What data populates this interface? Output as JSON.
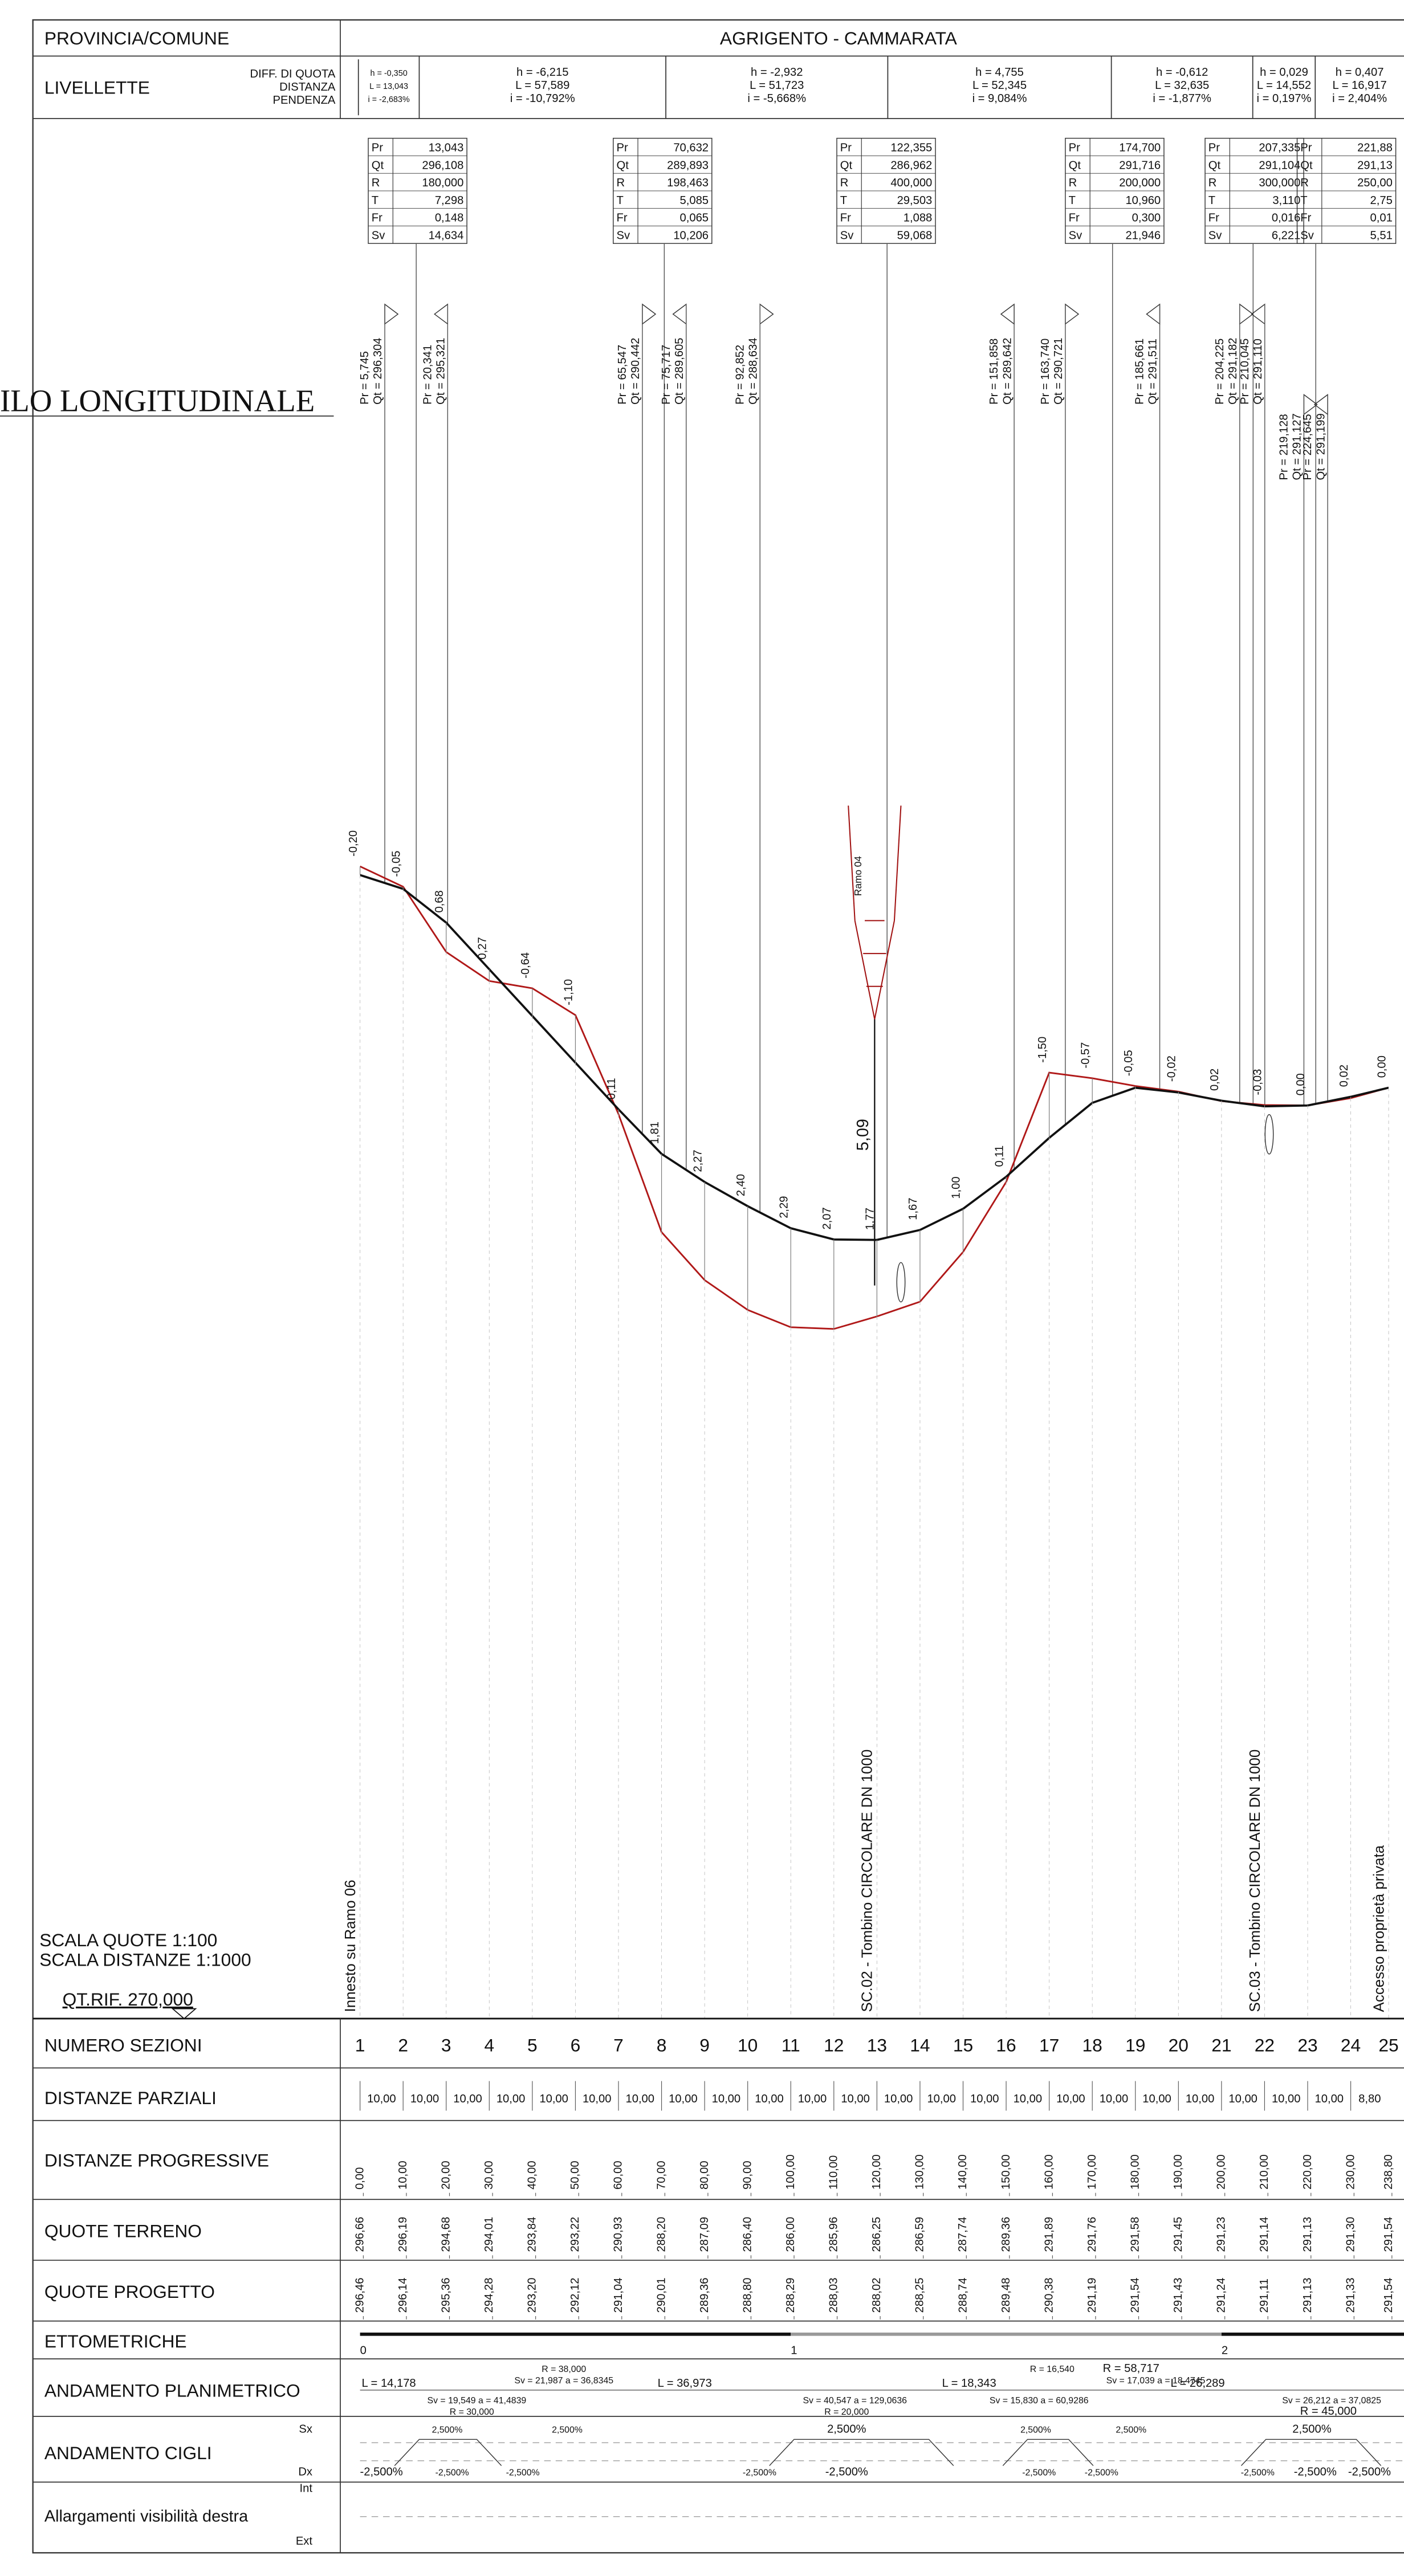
{
  "header": {
    "label": "PROVINCIA/COMUNE",
    "value": "AGRIGENTO - CAMMARATA"
  },
  "livellette": {
    "label": "LIVELLETTE",
    "fields": [
      "DIFF. DI QUOTA",
      "DISTANZA",
      "PENDENZA"
    ],
    "cells": [
      [
        "h = -0,350",
        "L = 13,043",
        "i = -2,683%"
      ],
      [
        "h = -6,215",
        "L = 57,589",
        "i = -10,792%"
      ],
      [
        "h = -2,932",
        "L = 51,723",
        "i = -5,668%"
      ],
      [
        "h = 4,755",
        "L = 52,345",
        "i = 9,084%"
      ],
      [
        "h = -0,612",
        "L = 32,635",
        "i = -1,877%"
      ],
      [
        "h = 0,029",
        "L = 14,552",
        "i = 0,197%"
      ],
      [
        "h = 0,407",
        "L = 16,917",
        "i = 2,404%"
      ]
    ]
  },
  "title": "ILO  LONGITUDINALE",
  "curve_labels": [
    "Pr",
    "Qt",
    "R",
    "T",
    "Fr",
    "Sv"
  ],
  "curves": [
    [
      "13,043",
      "296,108",
      "180,000",
      "7,298",
      "0,148",
      "14,634"
    ],
    [
      "70,632",
      "289,893",
      "198,463",
      "5,085",
      "0,065",
      "10,206"
    ],
    [
      "122,355",
      "286,962",
      "400,000",
      "29,503",
      "1,088",
      "59,068"
    ],
    [
      "174,700",
      "291,716",
      "200,000",
      "10,960",
      "0,300",
      "21,946"
    ],
    [
      "207,335",
      "291,104",
      "300,000",
      "3,110",
      "0,016",
      "6,221"
    ],
    [
      "221,88",
      "291,13",
      "250,00",
      "2,75",
      "0,01",
      "5,51"
    ]
  ],
  "markers": [
    {
      "pr": "Pr = 5,745",
      "qt": "Qt = 296,304"
    },
    {
      "pr": "Pr = 20,341",
      "qt": "Qt = 295,321"
    },
    {
      "pr": "Pr = 65,547",
      "qt": "Qt = 290,442"
    },
    {
      "pr": "Pr = 75,717",
      "qt": "Qt = 289,605"
    },
    {
      "pr": "Pr = 92,852",
      "qt": "Qt = 288,634"
    },
    {
      "pr": "Pr = 151,858",
      "qt": "Qt = 289,642"
    },
    {
      "pr": "Pr = 163,740",
      "qt": "Qt = 290,721"
    },
    {
      "pr": "Pr = 185,661",
      "qt": "Qt = 291,511"
    },
    {
      "pr": "Pr = 204,225",
      "qt": "Qt = 291,182"
    },
    {
      "pr": "Pr = 210,045",
      "qt": "Qt = 291,110"
    },
    {
      "pr": "Pr = 219,128",
      "qt": "Qt = 291,127"
    },
    {
      "pr": "Pr = 224,645",
      "qt": "Qt = 291,199"
    }
  ],
  "profile": {
    "differences": [
      "-0,20",
      "-0,05",
      "0,68",
      "0,27",
      "-0,64",
      "-1,10",
      "0,11",
      "1,81",
      "2,27",
      "2,40",
      "2,29",
      "2,07",
      "1,77",
      "1,67",
      "1,00",
      "0,11",
      "-1,50",
      "-0,57",
      "-0,05",
      "-0,02",
      "0,02",
      "-0,03",
      "0,00",
      "0,02",
      "0,00"
    ],
    "height_label": "5,09",
    "ramo": "Ramo 04"
  },
  "annotations": [
    "Innesto su Ramo 06",
    "SC.02 - Tombino CIRCOLARE DN 1000",
    "SC.03 - Tombino CIRCOLARE DN 1000",
    "Accesso proprietà privata"
  ],
  "scale": [
    "SCALA QUOTE 1:100",
    "SCALA DISTANZE 1:1000"
  ],
  "reference": "QT.RIF. 270,000",
  "table": {
    "numero_sezioni": {
      "label": "NUMERO SEZIONI",
      "values": [
        "1",
        "2",
        "3",
        "4",
        "5",
        "6",
        "7",
        "8",
        "9",
        "10",
        "11",
        "12",
        "13",
        "14",
        "15",
        "16",
        "17",
        "18",
        "19",
        "20",
        "21",
        "22",
        "23",
        "24",
        "25"
      ]
    },
    "distanze_parziali": {
      "label": "DISTANZE PARZIALI",
      "values": [
        "10,00",
        "10,00",
        "10,00",
        "10,00",
        "10,00",
        "10,00",
        "10,00",
        "10,00",
        "10,00",
        "10,00",
        "10,00",
        "10,00",
        "10,00",
        "10,00",
        "10,00",
        "10,00",
        "10,00",
        "10,00",
        "10,00",
        "10,00",
        "10,00",
        "10,00",
        "10,00",
        "8,80"
      ]
    },
    "distanze_progressive": {
      "label": "DISTANZE PROGRESSIVE",
      "values": [
        "0,00",
        "10,00",
        "20,00",
        "30,00",
        "40,00",
        "50,00",
        "60,00",
        "70,00",
        "80,00",
        "90,00",
        "100,00",
        "110,00",
        "120,00",
        "130,00",
        "140,00",
        "150,00",
        "160,00",
        "170,00",
        "180,00",
        "190,00",
        "200,00",
        "210,00",
        "220,00",
        "230,00",
        "238,80"
      ]
    },
    "quote_terreno": {
      "label": "QUOTE TERRENO",
      "values": [
        "296,66",
        "296,19",
        "294,68",
        "294,01",
        "293,84",
        "293,22",
        "290,93",
        "288,20",
        "287,09",
        "286,40",
        "286,00",
        "285,96",
        "286,25",
        "286,59",
        "287,74",
        "289,36",
        "291,89",
        "291,76",
        "291,58",
        "291,45",
        "291,23",
        "291,14",
        "291,13",
        "291,30",
        "291,54"
      ]
    },
    "quote_progetto": {
      "label": "QUOTE PROGETTO",
      "values": [
        "296,46",
        "296,14",
        "295,36",
        "294,28",
        "293,20",
        "292,12",
        "291,04",
        "290,01",
        "289,36",
        "288,80",
        "288,29",
        "288,03",
        "288,02",
        "288,25",
        "288,74",
        "289,48",
        "290,38",
        "291,19",
        "291,54",
        "291,43",
        "291,24",
        "291,11",
        "291,13",
        "291,33",
        "291,54"
      ]
    },
    "ettometriche": {
      "label": "ETTOMETRICHE",
      "values": [
        "0",
        "1",
        "2"
      ]
    },
    "planimetrico": {
      "label": "ANDAMENTO PLANIMETRICO",
      "items": [
        "L = 14,178",
        "R = 38,000",
        "Sv = 21,987  a = 36,8345",
        "Sv = 19,549  a = 41,4839",
        "R = 30,000",
        "L = 36,973",
        "Sv = 40,547  a = 129,0636",
        "R = 20,000",
        "L = 18,343",
        "R = 16,540",
        "R = 58,717",
        "Sv = 15,830  a = 60,9286",
        "Sv = 17,039  a = 18,4745",
        "L = 26,289",
        "Sv = 26,212  a = 37,0825",
        "R = 45,000"
      ]
    },
    "cigli": {
      "label": "ANDAMENTO CIGLI",
      "sx": "Sx",
      "dx": "Dx",
      "sx_values": [
        "2,500%",
        "2,500%",
        "2,500%",
        "2,500%",
        "2,500%",
        "2,500%"
      ],
      "dx_values": [
        "-2,500%",
        "-2,500%",
        "-2,500%",
        "-2,500%",
        "-2,500%",
        "-2,500%",
        "-2,500%",
        "-2,500%",
        "-2,500%",
        "-2,500%"
      ]
    },
    "allargamenti": {
      "label": "Allargamenti visibilità destra",
      "int": "Int",
      "ext": "Ext"
    }
  }
}
